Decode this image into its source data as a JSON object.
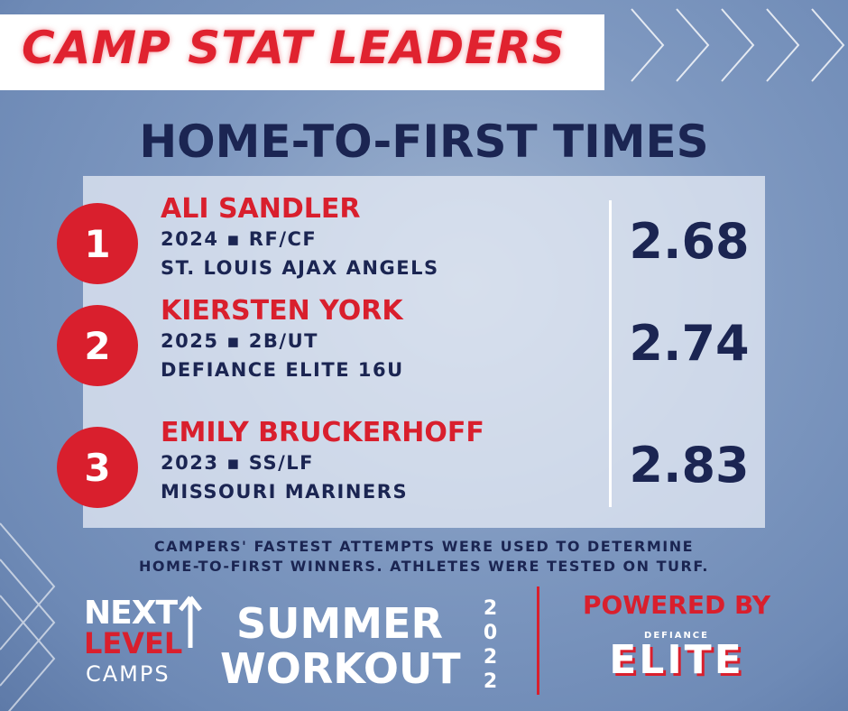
{
  "header": {
    "title": "CAMP STAT LEADERS"
  },
  "heading": "HOME-TO-FIRST TIMES",
  "leaders": [
    {
      "rank": "1",
      "name": "ALI SANDLER",
      "info": "2024 ▪ RF/CF",
      "team": "ST. LOUIS AJAX ANGELS",
      "time": "2.68"
    },
    {
      "rank": "2",
      "name": "KIERSTEN YORK",
      "info": "2025 ▪ 2B/UT",
      "team": "DEFIANCE ELITE 16U",
      "time": "2.74"
    },
    {
      "rank": "3",
      "name": "EMILY BRUCKERHOFF",
      "info": "2023 ▪ SS/LF",
      "team": "MISSOURI MARINERS",
      "time": "2.83"
    }
  ],
  "footnote": [
    "CAMPERS' FASTEST ATTEMPTS WERE USED TO DETERMINE",
    "HOME-TO-FIRST WINNERS. ATHLETES WERE TESTED ON TURF."
  ],
  "footer": {
    "logo": [
      "NEXT",
      "LEVEL",
      "CAMPS"
    ],
    "event": [
      "SUMMER",
      "WORKOUT"
    ],
    "year": "2022",
    "powered": "POWERED BY",
    "sponsor": [
      "DEFIANCE",
      "ELITE"
    ]
  }
}
